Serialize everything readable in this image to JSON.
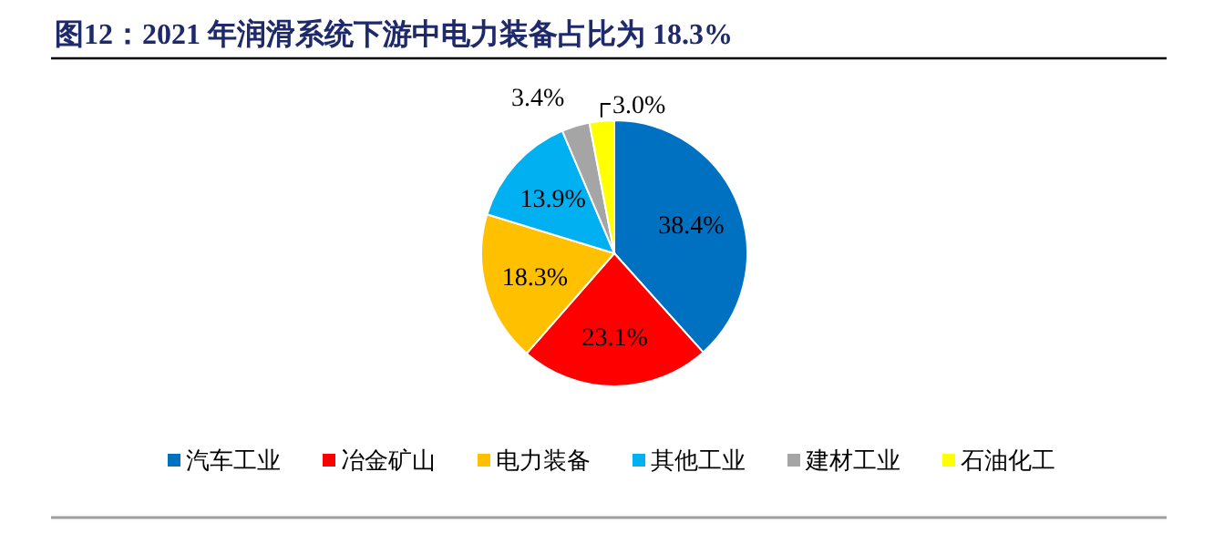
{
  "chart_data": {
    "type": "pie",
    "title": "图12：2021 年润滑系统下游中电力装备占比为 18.3%",
    "categories": [
      "汽车工业",
      "冶金矿山",
      "电力装备",
      "其他工业",
      "建材工业",
      "石油化工"
    ],
    "values": [
      38.4,
      23.1,
      18.3,
      13.9,
      3.4,
      3.0
    ],
    "colors": [
      "#0070c0",
      "#ff0000",
      "#ffc000",
      "#00b0f0",
      "#a5a5a5",
      "#ffff00"
    ],
    "value_labels": [
      "38.4%",
      "23.1%",
      "18.3%",
      "13.9%",
      "3.4%",
      "3.0%"
    ],
    "legend": "bottom"
  }
}
